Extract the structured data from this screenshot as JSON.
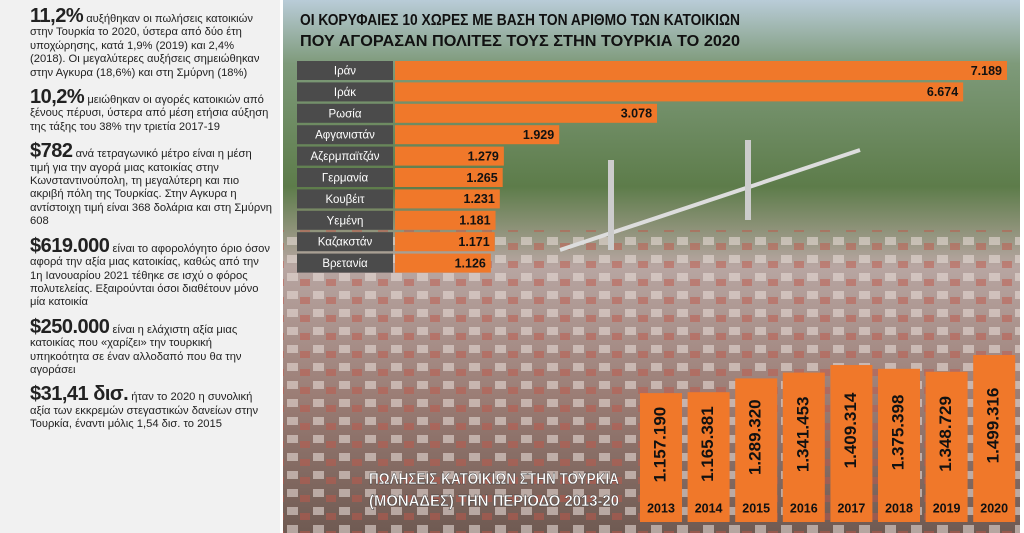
{
  "sidebar": [
    {
      "figure": "11,2%",
      "text": "αυξήθηκαν οι πωλήσεις κατοικιών στην Τουρκία το 2020, ύστερα από δύο έτη υποχώρησης, κατά 1,9% (2019) και 2,4% (2018). Οι μεγαλύτερες αυξήσεις σημειώθηκαν στην Αγκυρα (18,6%) και στη Σμύρνη (18%)"
    },
    {
      "figure": "10,2%",
      "text": "μειώθηκαν οι αγορές κατοικιών από ξένους πέρυσι, ύστερα από μέση ετήσια αύξηση της τάξης του 38% την τριετία 2017-19"
    },
    {
      "figure": "$782",
      "text": "ανά τετραγωνικό μέτρο είναι η μέση τιμή για την αγορά μιας κατοικίας στην Κωνσταντινούπολη, τη μεγαλύτερη και πιο ακριβή πόλη της Τουρκίας. Στην Αγκυρα η αντίστοιχη τιμή είναι 368 δολάρια και στη Σμύρνη 608"
    },
    {
      "figure": "$619.000",
      "text": "είναι το αφορολόγητο όριο όσον αφορά την αξία μιας κατοικίας, καθώς από την 1η Ιανουαρίου 2021 τέθηκε σε ισχύ ο φόρος πολυτελείας. Εξαιρούνται όσοι διαθέτουν μόνο μία κατοικία"
    },
    {
      "figure": "$250.000",
      "text": "είναι η ελάχιστη αξία μιας κατοικίας που «χαρίζει» την τουρκική υπηκοότητα σε έναν αλλοδαπό που θα την αγοράσει"
    },
    {
      "figure": "$31,41 δισ.",
      "text": "ήταν το 2020 η συνολική αξία των εκκρεμών στεγαστικών δανείων στην Τουρκία, έναντι μόλις 1,54 δισ. το 2015"
    }
  ],
  "chart_data": [
    {
      "type": "bar",
      "orientation": "horizontal",
      "color": "#f0782a",
      "title": [
        "ΟΙ ΚΟΡΥΦΑΙΕΣ 10 ΧΩΡΕΣ ΜΕ ΒΑΣΗ ΤΟΝ ΑΡΙΘΜΟ ΤΩΝ ΚΑΤΟΙΚΙΩΝ",
        "ΠΟΥ ΑΓΟΡΑΣΑΝ ΠΟΛΙΤΕΣ ΤΟΥΣ ΣΤΗΝ ΤΟΥΡΚΙΑ ΤΟ 2020"
      ],
      "categories": [
        "Ιράν",
        "Ιράκ",
        "Ρωσία",
        "Αφγανιστάν",
        "Αζερμπαϊτζάν",
        "Γερμανία",
        "Κουβέιτ",
        "Υεμένη",
        "Καζακστάν",
        "Βρετανία"
      ],
      "values": [
        7189,
        6674,
        3078,
        1929,
        1279,
        1265,
        1231,
        1181,
        1171,
        1126
      ],
      "value_labels": [
        "7.189",
        "6.674",
        "3.078",
        "1.929",
        "1.279",
        "1.265",
        "1.231",
        "1.181",
        "1.171",
        "1.126"
      ]
    },
    {
      "type": "bar",
      "orientation": "vertical",
      "color": "#f0782a",
      "title": [
        "ΠΩΛΗΣΕΙΣ ΚΑΤΟΙΚΙΩΝ ΣΤΗΝ ΤΟΥΡΚΙΑ",
        "(ΜΟΝΑΔΕΣ) ΤΗΝ ΠΕΡΙΟΔΟ 2013-20"
      ],
      "categories": [
        "2013",
        "2014",
        "2015",
        "2016",
        "2017",
        "2018",
        "2019",
        "2020"
      ],
      "values": [
        1157190,
        1165381,
        1289320,
        1341453,
        1409314,
        1375398,
        1348729,
        1499316
      ],
      "value_labels": [
        "1.157.190",
        "1.165.381",
        "1.289.320",
        "1.341.453",
        "1.409.314",
        "1.375.398",
        "1.348.729",
        "1.499.316"
      ]
    }
  ]
}
